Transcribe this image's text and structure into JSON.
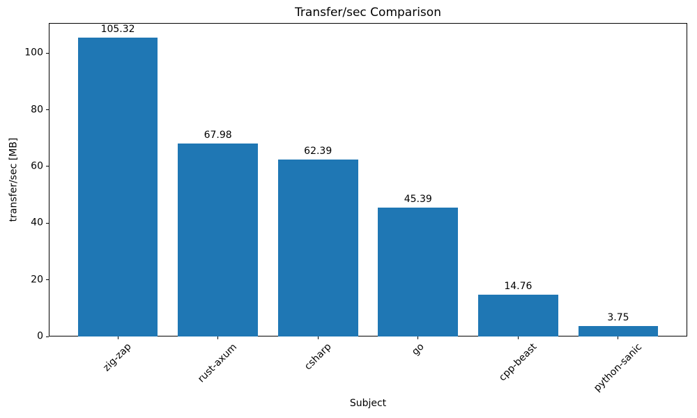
{
  "chart_data": {
    "type": "bar",
    "title": "Transfer/sec Comparison",
    "xlabel": "Subject",
    "ylabel": "transfer/sec [MB]",
    "categories": [
      "zig-zap",
      "rust-axum",
      "csharp",
      "go",
      "cpp-beast",
      "python-sanic"
    ],
    "values": [
      105.32,
      67.98,
      62.39,
      45.39,
      14.76,
      3.75
    ],
    "bar_labels": [
      "105.32",
      "67.98",
      "62.39",
      "45.39",
      "14.76",
      "3.75"
    ],
    "yticks": [
      0,
      20,
      40,
      60,
      80,
      100
    ],
    "ytick_labels": [
      "0",
      "20",
      "40",
      "60",
      "80",
      "100"
    ],
    "ylim": [
      0,
      110.6
    ],
    "xlim": [
      -0.69,
      5.69
    ],
    "bar_width": 0.8,
    "bar_color": "#1f77b4",
    "grid": false,
    "legend": "none",
    "xtick_rotation_deg": 45
  }
}
